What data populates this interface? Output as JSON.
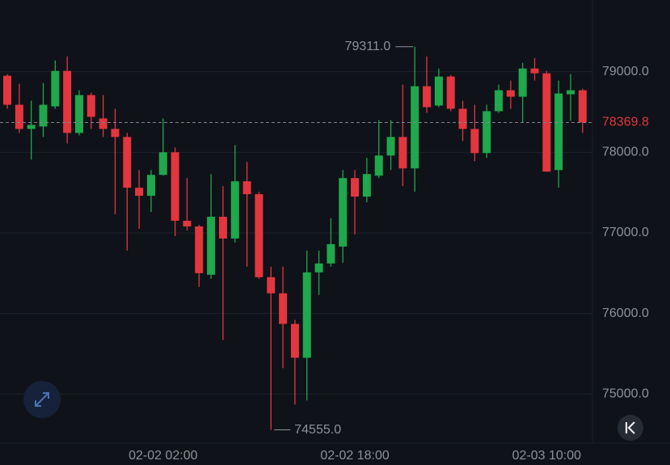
{
  "chart_data": {
    "type": "candlestick",
    "categories": [
      null,
      null,
      null,
      null,
      null,
      null,
      null,
      null,
      null,
      null,
      null,
      null,
      null,
      "02-02 02:00",
      null,
      null,
      null,
      null,
      null,
      null,
      null,
      null,
      null,
      null,
      null,
      null,
      null,
      null,
      null,
      "02-02 18:00",
      null,
      null,
      null,
      null,
      null,
      null,
      null,
      null,
      null,
      null,
      null,
      null,
      null,
      null,
      null,
      "02-03 10:00",
      null,
      null,
      null
    ],
    "open": [
      78950,
      78590,
      78290,
      78320,
      78570,
      79010,
      78240,
      78710,
      78420,
      78290,
      78190,
      77560,
      77460,
      77720,
      78000,
      77150,
      77080,
      76480,
      77200,
      76930,
      77640,
      77480,
      76450,
      76250,
      75870,
      75450,
      76510,
      76620,
      76830,
      77680,
      77450,
      77710,
      77960,
      78190,
      77800,
      78820,
      78580,
      78940,
      78540,
      78290,
      77990,
      78510,
      78770,
      78690,
      79040,
      78980,
      77780,
      78720,
      78770
    ],
    "high": [
      78970,
      78850,
      78640,
      78860,
      79140,
      79190,
      78770,
      78740,
      78710,
      78540,
      78240,
      77780,
      77780,
      78420,
      78060,
      77680,
      77100,
      77730,
      77580,
      78090,
      77880,
      77510,
      76580,
      76580,
      75920,
      76780,
      76780,
      77180,
      77780,
      77780,
      77930,
      78400,
      78400,
      78840,
      79311,
      79190,
      79040,
      78960,
      78640,
      78590,
      78590,
      78840,
      78890,
      79110,
      79170,
      79010,
      78890,
      78970,
      78790
    ],
    "low": [
      78540,
      78240,
      77910,
      78190,
      78540,
      78110,
      78210,
      78290,
      78190,
      77230,
      76780,
      77050,
      77260,
      77710,
      76960,
      77030,
      76330,
      76430,
      75670,
      76880,
      76580,
      76430,
      74555,
      75320,
      74870,
      74920,
      76230,
      76580,
      76630,
      76980,
      77380,
      77680,
      77780,
      77580,
      77510,
      78490,
      78560,
      78510,
      78140,
      77890,
      77930,
      78490,
      78540,
      78370,
      78890,
      77760,
      77560,
      78390,
      78240
    ],
    "close": [
      78590,
      78290,
      78340,
      78590,
      79010,
      78240,
      78710,
      78440,
      78290,
      78190,
      77560,
      77460,
      77720,
      78000,
      77150,
      77080,
      76500,
      77200,
      76930,
      77640,
      77480,
      76450,
      76250,
      75870,
      75450,
      76510,
      76620,
      76860,
      77680,
      77450,
      77730,
      77960,
      78190,
      77800,
      78820,
      78560,
      78940,
      78540,
      78290,
      77990,
      78510,
      78770,
      78690,
      79040,
      78980,
      77760,
      78730,
      78770,
      78369.8
    ],
    "up_color": "#1fa84c",
    "down_color": "#e3363f",
    "ylim": [
      74390,
      79890
    ],
    "yticks": [
      {
        "value": 75000,
        "label": "75000.0"
      },
      {
        "value": 76000,
        "label": "76000.0"
      },
      {
        "value": 77000,
        "label": "77000.0"
      },
      {
        "value": 78000,
        "label": "78000.0"
      },
      {
        "value": 79000,
        "label": "79000.0"
      }
    ],
    "grid": true,
    "last_price": 78369.8,
    "annotations": [
      {
        "value": 79311,
        "label": "79311.0"
      },
      {
        "value": 74555,
        "label": "74555.0"
      }
    ]
  }
}
